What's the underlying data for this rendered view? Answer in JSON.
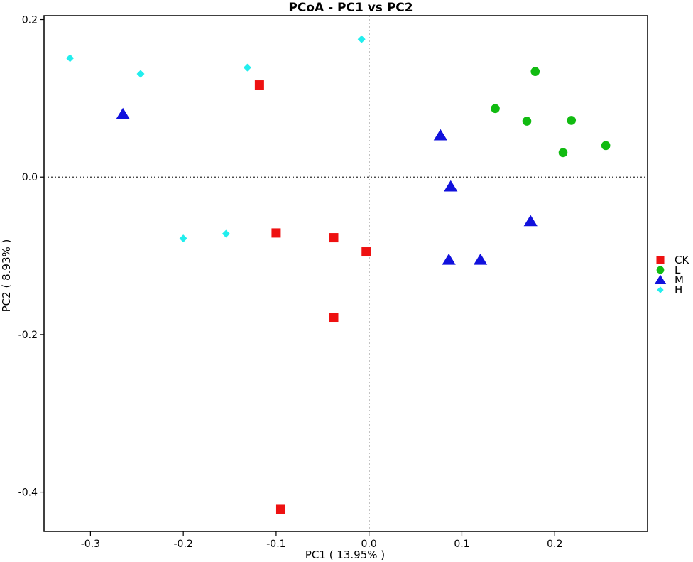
{
  "chart_data": {
    "type": "scatter",
    "title": "PCoA - PC1 vs PC2",
    "xlabel": "PC1 ( 13.95% )",
    "ylabel": "PC2 ( 8.93% )",
    "xlim": [
      -0.35,
      0.3
    ],
    "ylim": [
      -0.45,
      0.205
    ],
    "xticks": [
      -0.3,
      -0.2,
      -0.1,
      0.0,
      0.1,
      0.2
    ],
    "xtick_labels": [
      "-0.3",
      "-0.2",
      "-0.1",
      "0.0",
      "0.1",
      "0.2"
    ],
    "yticks": [
      -0.4,
      -0.2,
      0.0,
      0.2
    ],
    "ytick_labels": [
      "-0.4",
      "-0.2",
      "0.0",
      "0.2"
    ],
    "reference_lines": {
      "x": 0,
      "y": 0,
      "style": "dotted"
    },
    "grid": false,
    "legend_position": "right",
    "series": [
      {
        "name": "CK",
        "marker": "square",
        "color": "#ee1111",
        "points": [
          [
            -0.118,
            0.117
          ],
          [
            -0.1,
            -0.071
          ],
          [
            -0.038,
            -0.077
          ],
          [
            -0.003,
            -0.095
          ],
          [
            -0.038,
            -0.178
          ],
          [
            -0.095,
            -0.422
          ]
        ]
      },
      {
        "name": "L",
        "marker": "circle",
        "color": "#11bb11",
        "points": [
          [
            0.179,
            0.134
          ],
          [
            0.136,
            0.087
          ],
          [
            0.17,
            0.071
          ],
          [
            0.218,
            0.072
          ],
          [
            0.209,
            0.031
          ],
          [
            0.255,
            0.04
          ]
        ]
      },
      {
        "name": "M",
        "marker": "triangle",
        "color": "#1111dd",
        "points": [
          [
            -0.265,
            0.08
          ],
          [
            0.077,
            0.053
          ],
          [
            0.088,
            -0.012
          ],
          [
            0.174,
            -0.056
          ],
          [
            0.086,
            -0.105
          ],
          [
            0.12,
            -0.105
          ]
        ]
      },
      {
        "name": "H",
        "marker": "diamond",
        "color": "#22eeee",
        "points": [
          [
            -0.322,
            0.151
          ],
          [
            -0.246,
            0.131
          ],
          [
            -0.131,
            0.139
          ],
          [
            -0.008,
            0.175
          ],
          [
            -0.2,
            -0.078
          ],
          [
            -0.154,
            -0.072
          ]
        ]
      }
    ]
  }
}
